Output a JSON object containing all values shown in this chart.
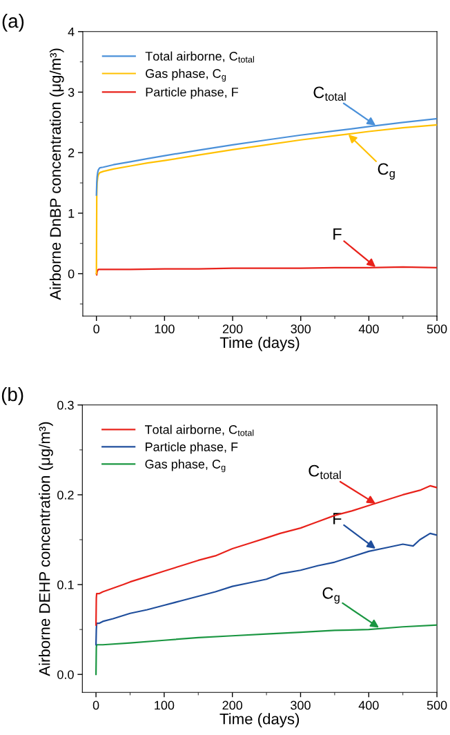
{
  "chart_data": [
    {
      "type": "line",
      "title": "(a)",
      "xlabel": "Time (days)",
      "ylabel": "Airborne DnBP concentration (μg/m³)",
      "xlim": [
        -20,
        500
      ],
      "ylim": [
        -0.7,
        4
      ],
      "xticks": [
        0,
        100,
        200,
        300,
        400,
        500
      ],
      "yticks": [
        0,
        1,
        2,
        3,
        4
      ],
      "grid": false,
      "legend": "top left",
      "series": [
        {
          "name": "Total airborne, C$_{total}$",
          "color": "#4a90d9",
          "x": [
            0,
            0.5,
            1,
            2,
            3,
            5,
            10,
            25,
            50,
            75,
            100,
            150,
            200,
            250,
            300,
            350,
            400,
            450,
            500
          ],
          "values": [
            1.3,
            1.5,
            1.6,
            1.68,
            1.72,
            1.75,
            1.76,
            1.8,
            1.85,
            1.9,
            1.95,
            2.04,
            2.13,
            2.21,
            2.29,
            2.36,
            2.43,
            2.5,
            2.56
          ]
        },
        {
          "name": "Gas phase, C$_{g}$",
          "color": "#ffc000",
          "x": [
            0,
            0.5,
            1,
            2,
            3,
            5,
            10,
            25,
            50,
            75,
            100,
            150,
            200,
            250,
            300,
            350,
            400,
            450,
            500
          ],
          "values": [
            0,
            1.3,
            1.5,
            1.6,
            1.64,
            1.67,
            1.69,
            1.73,
            1.78,
            1.83,
            1.87,
            1.96,
            2.05,
            2.13,
            2.21,
            2.28,
            2.35,
            2.41,
            2.46
          ]
        },
        {
          "name": "Particle phase, F",
          "color": "#e8221b",
          "x": [
            0,
            0.5,
            1,
            2,
            3,
            5,
            10,
            50,
            100,
            150,
            200,
            250,
            300,
            350,
            400,
            450,
            500
          ],
          "values": [
            0,
            -0.02,
            0.03,
            0.06,
            0.07,
            0.07,
            0.07,
            0.07,
            0.08,
            0.08,
            0.09,
            0.09,
            0.09,
            0.1,
            0.1,
            0.11,
            0.1
          ]
        }
      ],
      "annotations": [
        {
          "text": "C$_{total}$",
          "x": 410,
          "y": 2.45
        },
        {
          "text": "C$_{g}$",
          "x": 370,
          "y": 2.3
        },
        {
          "text": "F",
          "x": 410,
          "y": 0.11
        }
      ]
    },
    {
      "type": "line",
      "title": "(b)",
      "xlabel": "Time (days)",
      "ylabel": "Airborne DEHP concentration (μg/m³)",
      "xlim": [
        -20,
        500
      ],
      "ylim": [
        -0.02,
        0.3
      ],
      "xticks": [
        0,
        100,
        200,
        300,
        400,
        500
      ],
      "yticks": [
        {
          "value": 0,
          "label": "0.0"
        },
        0.1,
        0.2,
        0.3
      ],
      "grid": false,
      "legend": "top left",
      "series": [
        {
          "name": "Total airborne, C$_{total}$",
          "color": "#e8221b",
          "x": [
            0,
            0.5,
            1,
            5,
            10,
            25,
            40,
            50,
            75,
            100,
            125,
            150,
            175,
            200,
            225,
            250,
            270,
            300,
            325,
            350,
            375,
            400,
            425,
            450,
            475,
            490,
            500
          ],
          "values": [
            0.055,
            0.085,
            0.09,
            0.09,
            0.092,
            0.096,
            0.1,
            0.103,
            0.109,
            0.115,
            0.121,
            0.127,
            0.132,
            0.14,
            0.146,
            0.152,
            0.157,
            0.163,
            0.17,
            0.177,
            0.182,
            0.188,
            0.194,
            0.2,
            0.205,
            0.21,
            0.208
          ]
        },
        {
          "name": "Particle phase, F",
          "color": "#1f4e9c",
          "x": [
            0,
            0.5,
            1,
            5,
            10,
            25,
            50,
            75,
            100,
            125,
            150,
            175,
            200,
            225,
            250,
            270,
            300,
            325,
            350,
            375,
            400,
            425,
            450,
            465,
            475,
            490,
            500
          ],
          "values": [
            0.033,
            0.05,
            0.057,
            0.057,
            0.059,
            0.062,
            0.068,
            0.072,
            0.077,
            0.082,
            0.087,
            0.092,
            0.098,
            0.102,
            0.106,
            0.112,
            0.116,
            0.121,
            0.125,
            0.131,
            0.137,
            0.141,
            0.145,
            0.143,
            0.15,
            0.157,
            0.155
          ]
        },
        {
          "name": "Gas phase, C$_{g}$",
          "color": "#1a9641",
          "x": [
            0,
            0.5,
            1,
            5,
            10,
            50,
            100,
            150,
            200,
            250,
            300,
            350,
            400,
            450,
            500
          ],
          "values": [
            0,
            0.03,
            0.033,
            0.033,
            0.033,
            0.035,
            0.038,
            0.041,
            0.043,
            0.045,
            0.047,
            0.049,
            0.05,
            0.053,
            0.055
          ]
        }
      ],
      "annotations": [
        {
          "text": "C$_{total}$",
          "x": 410,
          "y": 0.19
        },
        {
          "text": "F",
          "x": 410,
          "y": 0.14
        },
        {
          "text": "C$_{g}$",
          "x": 415,
          "y": 0.052
        }
      ]
    }
  ]
}
